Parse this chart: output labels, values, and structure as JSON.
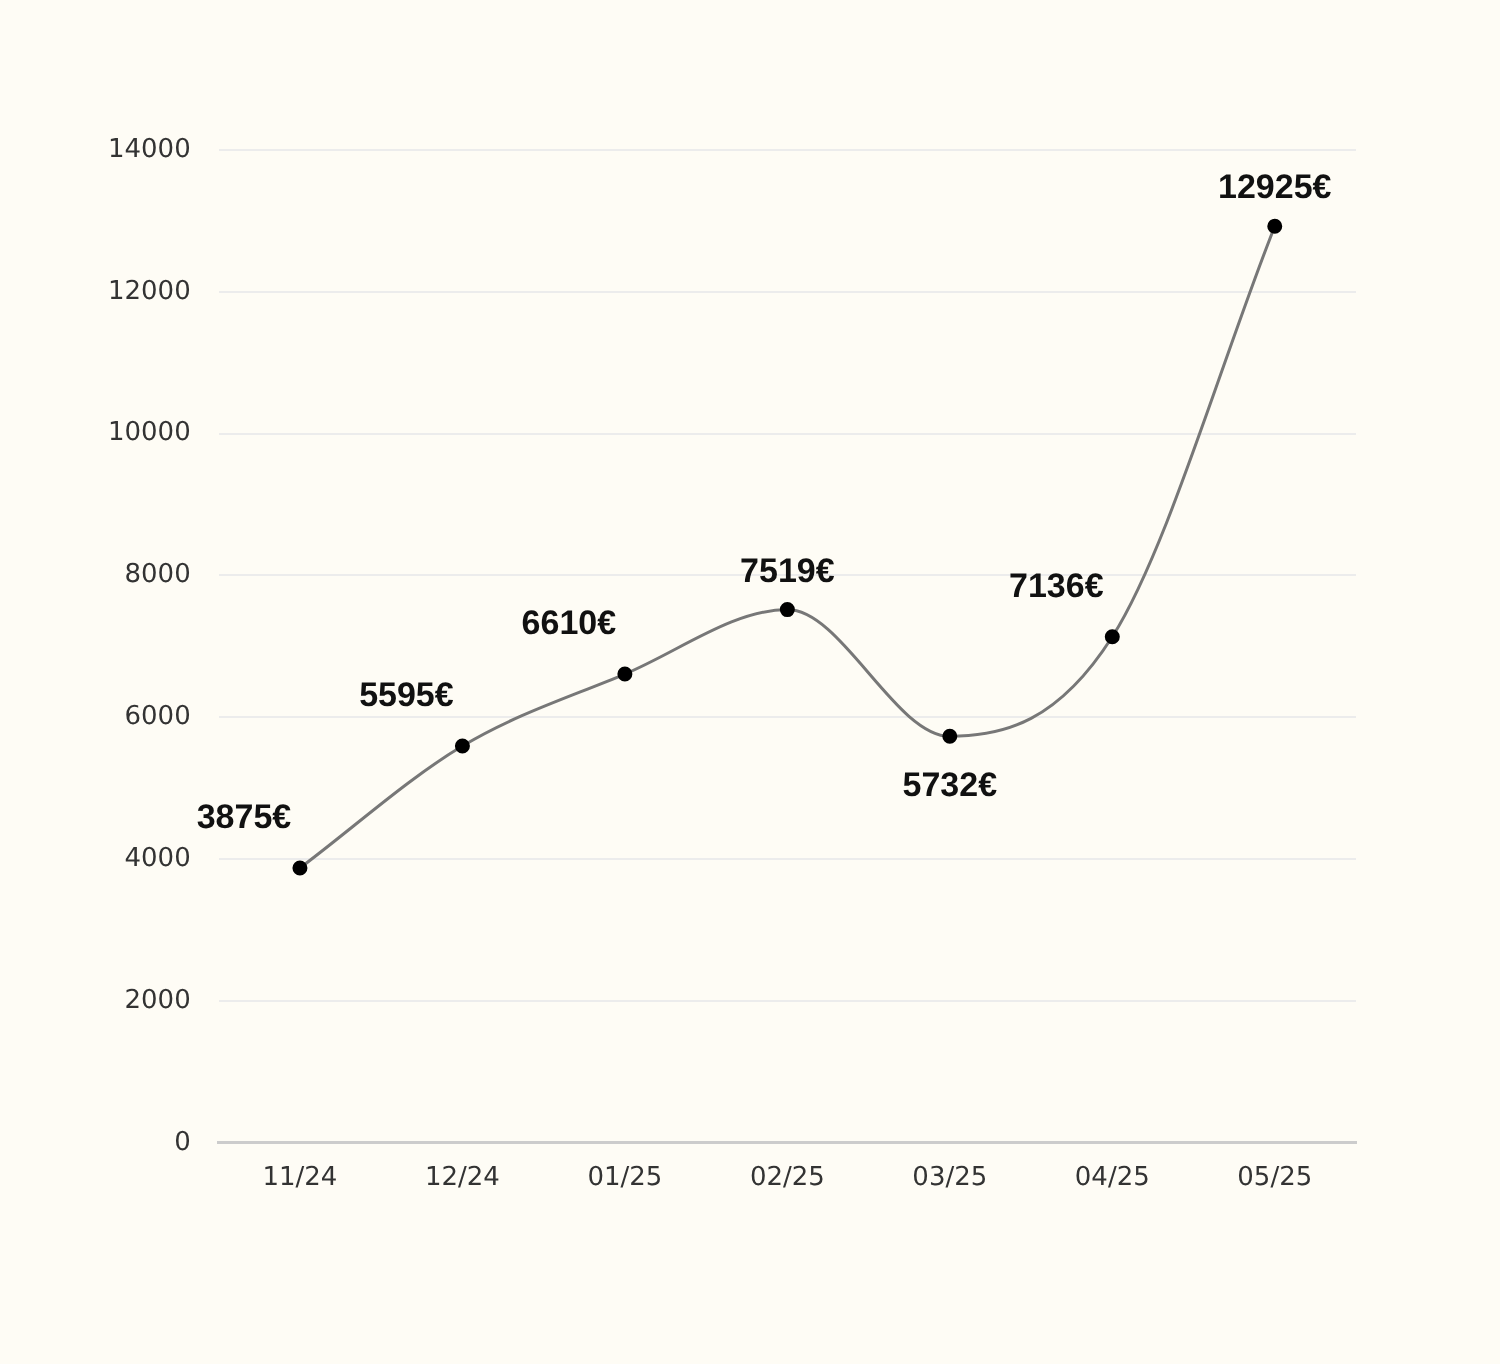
{
  "chart_data": {
    "type": "line",
    "categories": [
      "11/24",
      "12/24",
      "01/25",
      "02/25",
      "03/25",
      "04/25",
      "05/25"
    ],
    "series": [
      {
        "color": "#777777",
        "values": [
          3875,
          5595,
          6610,
          7519,
          5732,
          7136,
          12925
        ],
        "value_labels": [
          "3875€",
          "5595€",
          "6610€",
          "7519€",
          "5732€",
          "7136€",
          "12925€"
        ]
      }
    ],
    "ylim": [
      0,
      14000
    ],
    "yticks": [
      0,
      2000,
      4000,
      6000,
      8000,
      10000,
      12000,
      14000
    ],
    "grid": "y",
    "legend": false,
    "marker": "circle",
    "line_style": "solid"
  }
}
